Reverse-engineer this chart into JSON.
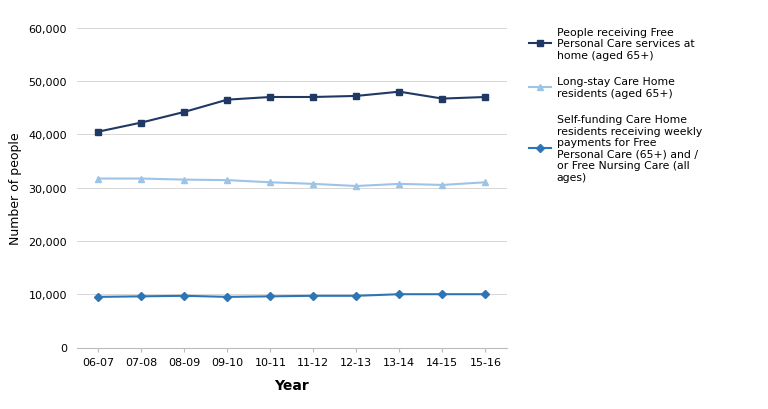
{
  "years": [
    "06-07",
    "07-08",
    "08-09",
    "09-10",
    "10-11",
    "11-12",
    "12-13",
    "13-14",
    "14-15",
    "15-16"
  ],
  "free_personal_care": [
    40500,
    42200,
    44200,
    46500,
    47000,
    47000,
    47200,
    48000,
    46700,
    47000
  ],
  "long_stay_care_home": [
    31700,
    31700,
    31500,
    31400,
    31000,
    30700,
    30300,
    30700,
    30500,
    31000
  ],
  "self_funding": [
    9500,
    9600,
    9700,
    9500,
    9600,
    9700,
    9700,
    10000,
    10000,
    10000
  ],
  "color_fpc": "#1f3864",
  "color_lsch": "#9dc3e6",
  "color_sf": "#2e75b6",
  "ylabel": "Number of people",
  "xlabel": "Year",
  "ylim": [
    0,
    60000
  ],
  "yticks": [
    0,
    10000,
    20000,
    30000,
    40000,
    50000,
    60000
  ],
  "legend_fpc": "People receiving Free\nPersonal Care services at\nhome (aged 65+)",
  "legend_lsch": "Long-stay Care Home\nresidents (aged 65+)",
  "legend_sf": "Self-funding Care Home\nresidents receiving weekly\npayments for Free\nPersonal Care (65+) and /\nor Free Nursing Care (all\nages)",
  "bg_color": "#ffffff"
}
